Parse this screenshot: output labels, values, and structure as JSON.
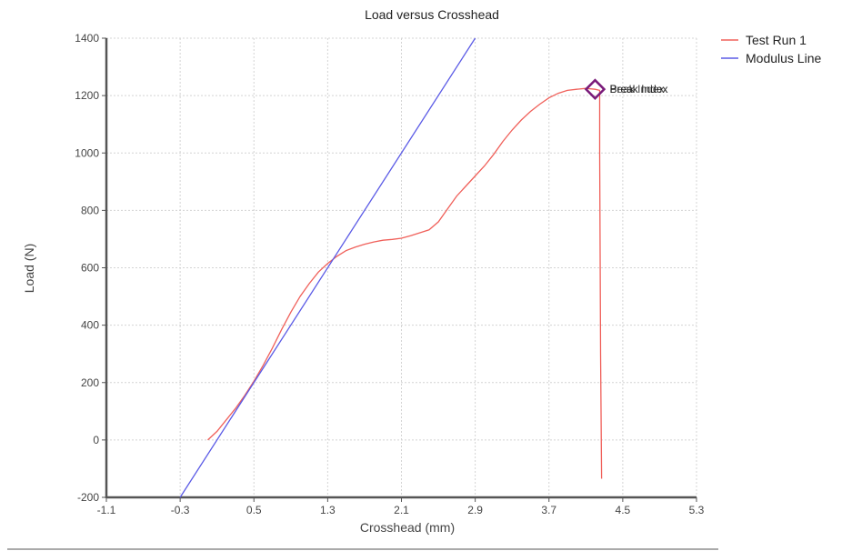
{
  "chart_data": {
    "type": "line",
    "title": "Load versus Crosshead",
    "xlabel": "Crosshead (mm)",
    "ylabel": "Load (N)",
    "xlim": [
      -1.1,
      5.3
    ],
    "ylim": [
      -200,
      1400
    ],
    "x_ticks": [
      -1.1,
      -0.3,
      0.5,
      1.3,
      2.1,
      2.9,
      3.7,
      4.5,
      5.3
    ],
    "x_tick_labels": [
      "-1.1",
      "-0.3",
      "0.5",
      "1.3",
      "2.1",
      "2.9",
      "3.7",
      "4.5",
      "5.3"
    ],
    "y_ticks": [
      -200,
      0,
      200,
      400,
      600,
      800,
      1000,
      1200,
      1400
    ],
    "y_tick_labels": [
      "-200",
      "0",
      "200",
      "400",
      "600",
      "800",
      "1000",
      "1200",
      "1400"
    ],
    "grid": true,
    "legend_position": "top-right",
    "series": [
      {
        "name": "Test Run 1",
        "color": "#f0605a",
        "x": [
          0.0,
          0.1,
          0.2,
          0.3,
          0.4,
          0.5,
          0.6,
          0.7,
          0.8,
          0.9,
          1.0,
          1.1,
          1.2,
          1.3,
          1.4,
          1.5,
          1.6,
          1.7,
          1.8,
          1.9,
          2.0,
          2.1,
          2.2,
          2.3,
          2.4,
          2.5,
          2.6,
          2.7,
          2.8,
          2.9,
          3.0,
          3.1,
          3.2,
          3.3,
          3.4,
          3.5,
          3.6,
          3.7,
          3.8,
          3.9,
          4.0,
          4.1,
          4.2,
          4.25,
          4.25,
          4.26,
          4.27
        ],
        "y": [
          0,
          30,
          70,
          110,
          155,
          205,
          260,
          320,
          385,
          445,
          500,
          545,
          585,
          615,
          640,
          660,
          672,
          682,
          690,
          696,
          699,
          703,
          712,
          722,
          732,
          760,
          805,
          850,
          885,
          920,
          955,
          995,
          1040,
          1080,
          1115,
          1145,
          1170,
          1192,
          1208,
          1218,
          1222,
          1225,
          1222,
          1218,
          1000,
          300,
          -135
        ]
      },
      {
        "name": "Modulus Line",
        "color": "#5b5be6",
        "x": [
          -0.3,
          2.9
        ],
        "y": [
          -200,
          1400
        ]
      }
    ],
    "annotations": [
      {
        "marker": "diamond",
        "color": "#7a1b7a",
        "x": 4.2,
        "y": 1222,
        "labels": [
          "Break Index",
          "Peak Index"
        ]
      }
    ]
  }
}
